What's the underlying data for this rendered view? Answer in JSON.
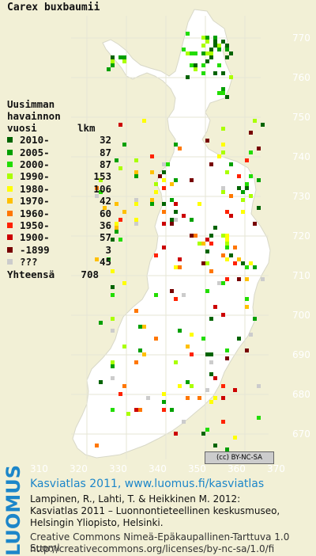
{
  "species": "Carex buxbaumii",
  "legend": {
    "title_lines": [
      "Uusimman",
      "havainnon",
      "vuosi"
    ],
    "count_header": "lkm",
    "entries": [
      {
        "label": "2010-",
        "count": "32",
        "color": "#006400"
      },
      {
        "label": "2005-",
        "count": "87",
        "color": "#00a000"
      },
      {
        "label": "2000-",
        "count": "87",
        "color": "#22dd00"
      },
      {
        "label": "1990-",
        "count": "153",
        "color": "#aaff00"
      },
      {
        "label": "1980-",
        "count": "106",
        "color": "#ffff00"
      },
      {
        "label": "1970-",
        "count": "42",
        "color": "#ffc000"
      },
      {
        "label": "1960-",
        "count": "60",
        "color": "#ff7700"
      },
      {
        "label": "1950-",
        "count": "36",
        "color": "#ff2200"
      },
      {
        "label": "1900-",
        "count": "57",
        "color": "#cc0000"
      },
      {
        "label": "-1899",
        "count": "3",
        "color": "#770000"
      },
      {
        "label": "???",
        "count": "45",
        "color": "#cccccc"
      }
    ],
    "total_label": "Yhteensä",
    "total_count": "708"
  },
  "y_ticks": [
    "770",
    "760",
    "750",
    "740",
    "730",
    "720",
    "710",
    "700",
    "690",
    "680",
    "670"
  ],
  "x_ticks": [
    "310",
    "320",
    "330",
    "340",
    "350",
    "360",
    "370"
  ],
  "license_badge": "BY-NC-SA",
  "footer": {
    "logo_text": "LUOMUS",
    "line1": "Kasviatlas 2011, www.luomus.fi/kasviatlas",
    "line2": "Lampinen, R., Lahti, T. & Heikkinen M. 2012:",
    "line3": "Kasviatlas 2011 – Luonnontieteellinen keskusmuseo,",
    "line4": "Helsingin Yliopisto, Helsinki.",
    "line5": "Creative Commons Nimeä-Epäkaupallinen-Tarttuva 1.0 Suomi",
    "line6": "http://creativecommons.org/licenses/by-nc-sa/1.0/fi"
  }
}
